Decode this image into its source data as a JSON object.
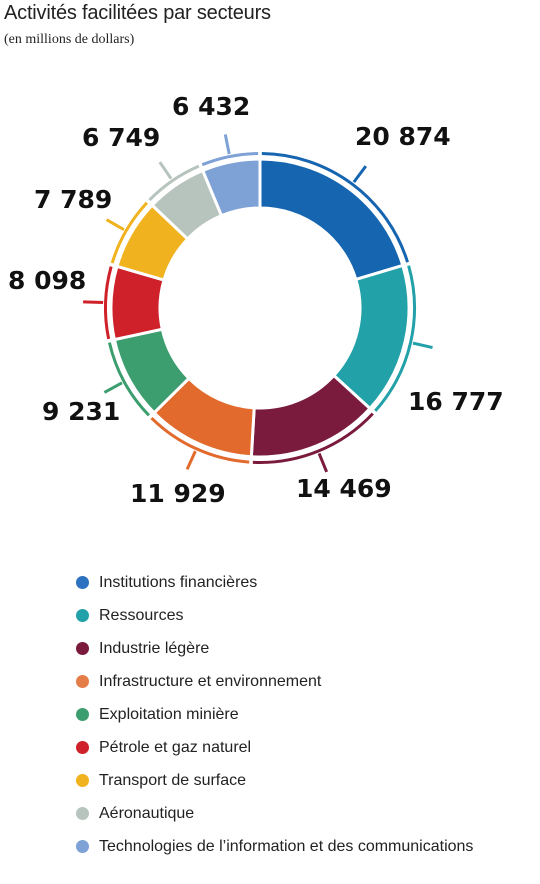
{
  "title": "Activités facilitées par secteurs",
  "subtitle": "(en millions de dollars)",
  "chart_data": {
    "type": "pie",
    "variant": "donut",
    "title": "Activités facilitées par secteurs",
    "subtitle": "(en millions de dollars)",
    "unit": "millions de dollars",
    "legend_position": "bottom",
    "slices": [
      {
        "name": "Institutions financières",
        "value": 20874,
        "label": "20 874",
        "color": "#1565b0"
      },
      {
        "name": "Ressources",
        "value": 16777,
        "label": "16 777",
        "color": "#22a1a8"
      },
      {
        "name": "Industrie légère",
        "value": 14469,
        "label": "14 469",
        "color": "#7a1b3e"
      },
      {
        "name": "Infrastructure et environnement",
        "value": 11929,
        "label": "11 929",
        "color": "#e26a2c"
      },
      {
        "name": "Exploitation minière",
        "value": 9231,
        "label": "9 231",
        "color": "#3c9e6e"
      },
      {
        "name": "Pétrole et gaz naturel",
        "value": 8098,
        "label": "8 098",
        "color": "#cf2129"
      },
      {
        "name": "Transport de surface",
        "value": 7789,
        "label": "7 789",
        "color": "#f0b21e"
      },
      {
        "name": "Aéronautique",
        "value": 6749,
        "label": "6 749",
        "color": "#b7c4bd"
      },
      {
        "name": "Technologies de l’information et des communications",
        "value": 6432,
        "label": "6 432",
        "color": "#7ea1d6"
      }
    ]
  },
  "legend": [
    {
      "label": "Institutions financières",
      "color": "#2d72c0"
    },
    {
      "label": "Ressources",
      "color": "#22a1a8"
    },
    {
      "label": "Industrie légère",
      "color": "#7a1b3e"
    },
    {
      "label": "Infrastructure et environnement",
      "color": "#e57d48"
    },
    {
      "label": "Exploitation minière",
      "color": "#3c9e6e"
    },
    {
      "label": "Pétrole et gaz naturel",
      "color": "#cf2129"
    },
    {
      "label": "Transport de surface",
      "color": "#f0b21e"
    },
    {
      "label": "Aéronautique",
      "color": "#b7c4bd"
    },
    {
      "label": "Technologies de l’information et des communications",
      "color": "#7ea1d6"
    }
  ]
}
